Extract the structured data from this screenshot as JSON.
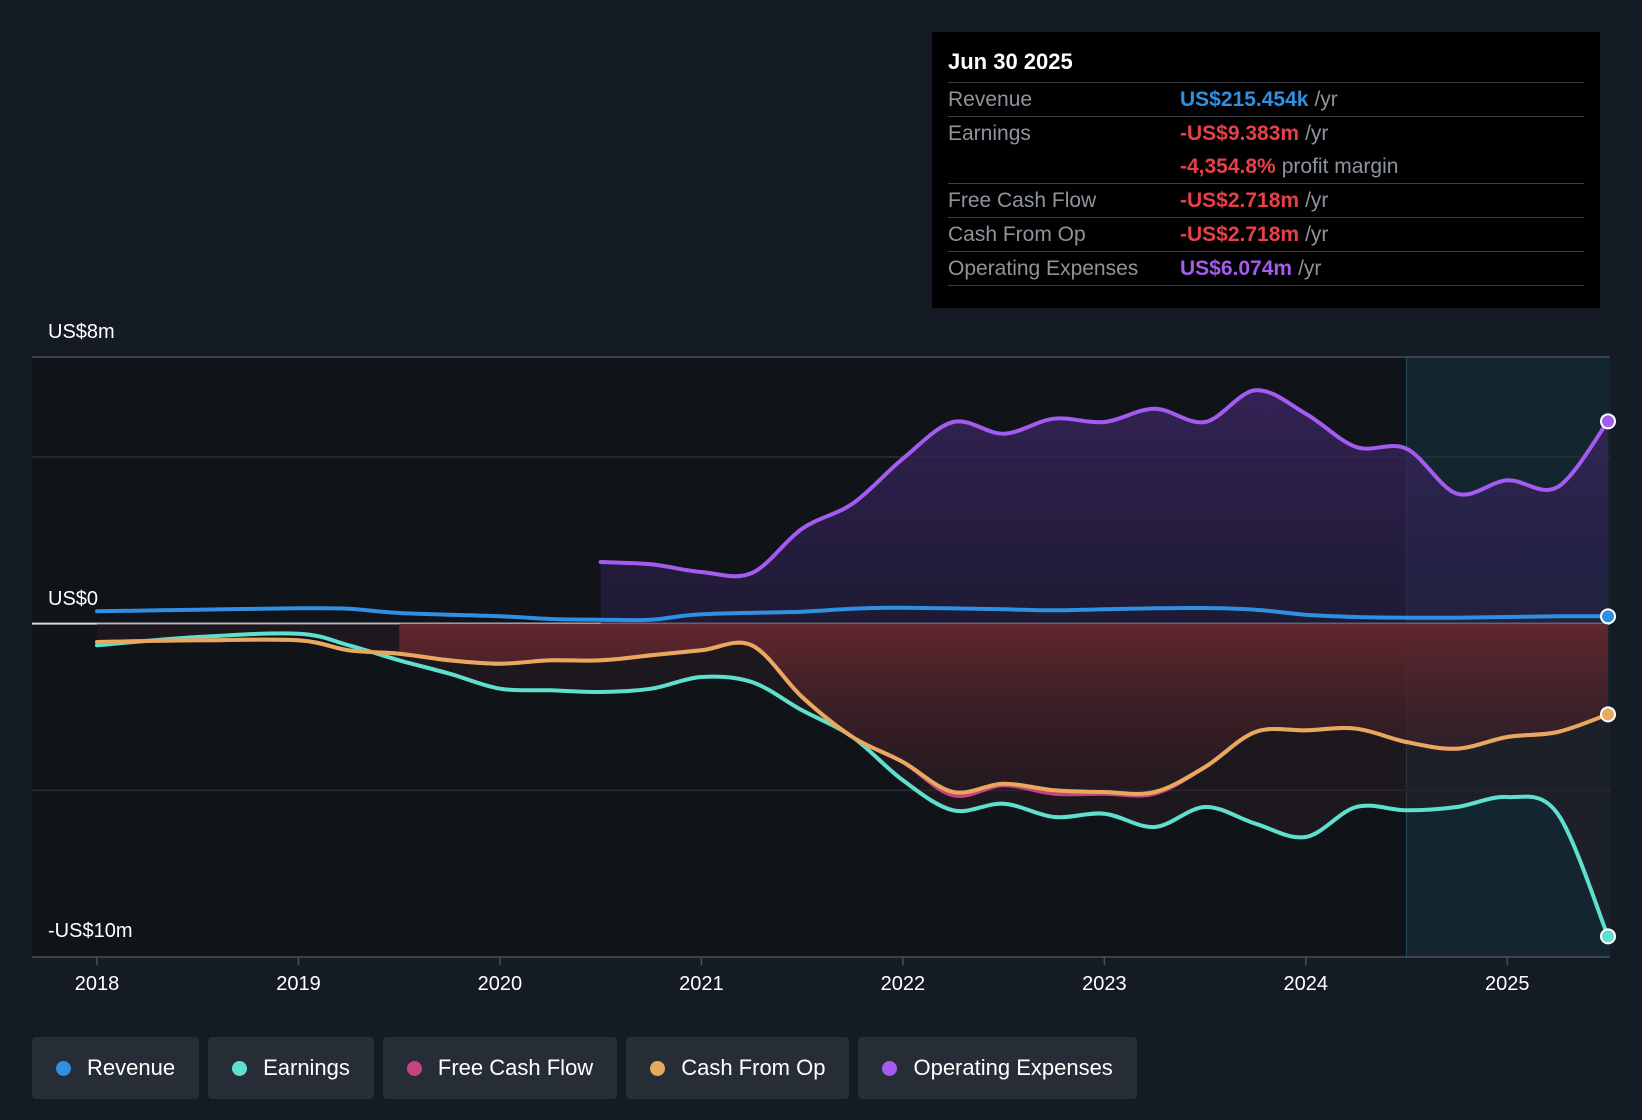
{
  "tooltip": {
    "date": "Jun 30 2025",
    "rows": [
      {
        "label": "Revenue",
        "value": "US$215.454k",
        "unit": "/yr",
        "color": "#2f8fe0"
      },
      {
        "label": "Earnings",
        "value": "-US$9.383m",
        "unit": "/yr",
        "color": "#e8404a"
      },
      {
        "label": "",
        "value": "-4,354.8%",
        "unit": "profit margin",
        "color": "#e8404a"
      },
      {
        "label": "Free Cash Flow",
        "value": "-US$2.718m",
        "unit": "/yr",
        "color": "#e8404a"
      },
      {
        "label": "Cash From Op",
        "value": "-US$2.718m",
        "unit": "/yr",
        "color": "#e8404a"
      },
      {
        "label": "Operating Expenses",
        "value": "US$6.074m",
        "unit": "/yr",
        "color": "#a35bf0"
      }
    ]
  },
  "legend": [
    {
      "label": "Revenue",
      "color": "#2f8fe0"
    },
    {
      "label": "Earnings",
      "color": "#5fe0cf"
    },
    {
      "label": "Free Cash Flow",
      "color": "#c7437f"
    },
    {
      "label": "Cash From Op",
      "color": "#e8a95d"
    },
    {
      "label": "Operating Expenses",
      "color": "#a35bf0"
    }
  ],
  "chart_data": {
    "type": "line",
    "y_tick_labels": [
      "US$8m",
      "US$0",
      "-US$10m"
    ],
    "ylim": [
      -10,
      8
    ],
    "xlim": [
      2017.7,
      2025.5
    ],
    "x_tick_labels": [
      "2018",
      "2019",
      "2020",
      "2021",
      "2022",
      "2023",
      "2024",
      "2025"
    ],
    "x_ticks": [
      2018,
      2019,
      2020,
      2021,
      2022,
      2023,
      2024,
      2025
    ],
    "gridlines": [
      8,
      5,
      -5,
      -10
    ],
    "forecast_start": 2024.5,
    "series": [
      {
        "name": "Revenue",
        "color": "#2f8fe0",
        "fill": false,
        "points": [
          [
            2018.0,
            0.37
          ],
          [
            2018.5,
            0.42
          ],
          [
            2019.0,
            0.46
          ],
          [
            2019.25,
            0.45
          ],
          [
            2019.5,
            0.32
          ],
          [
            2020.0,
            0.22
          ],
          [
            2020.25,
            0.14
          ],
          [
            2020.5,
            0.12
          ],
          [
            2020.75,
            0.12
          ],
          [
            2021.0,
            0.28
          ],
          [
            2021.5,
            0.36
          ],
          [
            2021.75,
            0.45
          ],
          [
            2022.0,
            0.48
          ],
          [
            2022.5,
            0.43
          ],
          [
            2022.75,
            0.4
          ],
          [
            2023.0,
            0.43
          ],
          [
            2023.25,
            0.46
          ],
          [
            2023.5,
            0.47
          ],
          [
            2023.75,
            0.42
          ],
          [
            2024.0,
            0.27
          ],
          [
            2024.25,
            0.2
          ],
          [
            2024.5,
            0.18
          ],
          [
            2024.75,
            0.18
          ],
          [
            2025.0,
            0.2
          ],
          [
            2025.25,
            0.22
          ],
          [
            2025.5,
            0.22
          ]
        ]
      },
      {
        "name": "Earnings",
        "color": "#5fe0cf",
        "fill": false,
        "points": [
          [
            2018.0,
            -0.65
          ],
          [
            2018.5,
            -0.4
          ],
          [
            2019.0,
            -0.3
          ],
          [
            2019.25,
            -0.65
          ],
          [
            2019.5,
            -1.1
          ],
          [
            2019.75,
            -1.5
          ],
          [
            2020.0,
            -1.95
          ],
          [
            2020.25,
            -2.0
          ],
          [
            2020.5,
            -2.05
          ],
          [
            2020.75,
            -1.95
          ],
          [
            2021.0,
            -1.6
          ],
          [
            2021.25,
            -1.75
          ],
          [
            2021.5,
            -2.6
          ],
          [
            2021.75,
            -3.4
          ],
          [
            2022.0,
            -4.7
          ],
          [
            2022.25,
            -5.6
          ],
          [
            2022.5,
            -5.4
          ],
          [
            2022.75,
            -5.8
          ],
          [
            2023.0,
            -5.7
          ],
          [
            2023.25,
            -6.1
          ],
          [
            2023.5,
            -5.5
          ],
          [
            2023.75,
            -6.0
          ],
          [
            2024.0,
            -6.4
          ],
          [
            2024.25,
            -5.5
          ],
          [
            2024.5,
            -5.6
          ],
          [
            2024.75,
            -5.5
          ],
          [
            2025.0,
            -5.2
          ],
          [
            2025.25,
            -5.7
          ],
          [
            2025.5,
            -9.38
          ]
        ]
      },
      {
        "name": "Free Cash Flow",
        "color": "#c7437f",
        "fill": true,
        "fill_start": 2019.5,
        "points": [
          [
            2018.0,
            -0.55
          ],
          [
            2018.5,
            -0.5
          ],
          [
            2019.0,
            -0.5
          ],
          [
            2019.25,
            -0.8
          ],
          [
            2019.5,
            -0.9
          ],
          [
            2019.75,
            -1.1
          ],
          [
            2020.0,
            -1.2
          ],
          [
            2020.25,
            -1.1
          ],
          [
            2020.5,
            -1.1
          ],
          [
            2020.75,
            -0.95
          ],
          [
            2021.0,
            -0.8
          ],
          [
            2021.25,
            -0.65
          ],
          [
            2021.5,
            -2.2
          ],
          [
            2021.75,
            -3.4
          ],
          [
            2022.0,
            -4.15
          ],
          [
            2022.25,
            -5.15
          ],
          [
            2022.5,
            -4.85
          ],
          [
            2022.75,
            -5.1
          ],
          [
            2023.0,
            -5.1
          ],
          [
            2023.25,
            -5.1
          ],
          [
            2023.5,
            -4.3
          ],
          [
            2023.75,
            -3.25
          ],
          [
            2024.0,
            -3.2
          ],
          [
            2024.25,
            -3.15
          ],
          [
            2024.5,
            -3.55
          ],
          [
            2024.75,
            -3.75
          ],
          [
            2025.0,
            -3.4
          ],
          [
            2025.25,
            -3.25
          ],
          [
            2025.5,
            -2.72
          ]
        ]
      },
      {
        "name": "Cash From Op",
        "color": "#e8a95d",
        "fill": false,
        "points": [
          [
            2018.0,
            -0.55
          ],
          [
            2018.5,
            -0.5
          ],
          [
            2019.0,
            -0.5
          ],
          [
            2019.25,
            -0.8
          ],
          [
            2019.5,
            -0.9
          ],
          [
            2019.75,
            -1.1
          ],
          [
            2020.0,
            -1.2
          ],
          [
            2020.25,
            -1.1
          ],
          [
            2020.5,
            -1.1
          ],
          [
            2020.75,
            -0.95
          ],
          [
            2021.0,
            -0.8
          ],
          [
            2021.25,
            -0.65
          ],
          [
            2021.5,
            -2.2
          ],
          [
            2021.75,
            -3.4
          ],
          [
            2022.0,
            -4.15
          ],
          [
            2022.25,
            -5.05
          ],
          [
            2022.5,
            -4.8
          ],
          [
            2022.75,
            -5.0
          ],
          [
            2023.0,
            -5.05
          ],
          [
            2023.25,
            -5.05
          ],
          [
            2023.5,
            -4.3
          ],
          [
            2023.75,
            -3.25
          ],
          [
            2024.0,
            -3.2
          ],
          [
            2024.25,
            -3.15
          ],
          [
            2024.5,
            -3.55
          ],
          [
            2024.75,
            -3.75
          ],
          [
            2025.0,
            -3.4
          ],
          [
            2025.25,
            -3.25
          ],
          [
            2025.5,
            -2.72
          ]
        ]
      },
      {
        "name": "Operating Expenses",
        "color": "#a35bf0",
        "fill": true,
        "fill_start": 2020.5,
        "points": [
          [
            2020.5,
            1.85
          ],
          [
            2020.75,
            1.78
          ],
          [
            2021.0,
            1.55
          ],
          [
            2021.25,
            1.52
          ],
          [
            2021.5,
            2.85
          ],
          [
            2021.75,
            3.6
          ],
          [
            2022.0,
            4.95
          ],
          [
            2022.25,
            6.05
          ],
          [
            2022.5,
            5.7
          ],
          [
            2022.75,
            6.15
          ],
          [
            2023.0,
            6.05
          ],
          [
            2023.25,
            6.45
          ],
          [
            2023.5,
            6.05
          ],
          [
            2023.75,
            7.0
          ],
          [
            2024.0,
            6.3
          ],
          [
            2024.25,
            5.3
          ],
          [
            2024.5,
            5.25
          ],
          [
            2024.75,
            3.9
          ],
          [
            2025.0,
            4.3
          ],
          [
            2025.25,
            4.1
          ],
          [
            2025.5,
            6.07
          ]
        ]
      }
    ]
  }
}
